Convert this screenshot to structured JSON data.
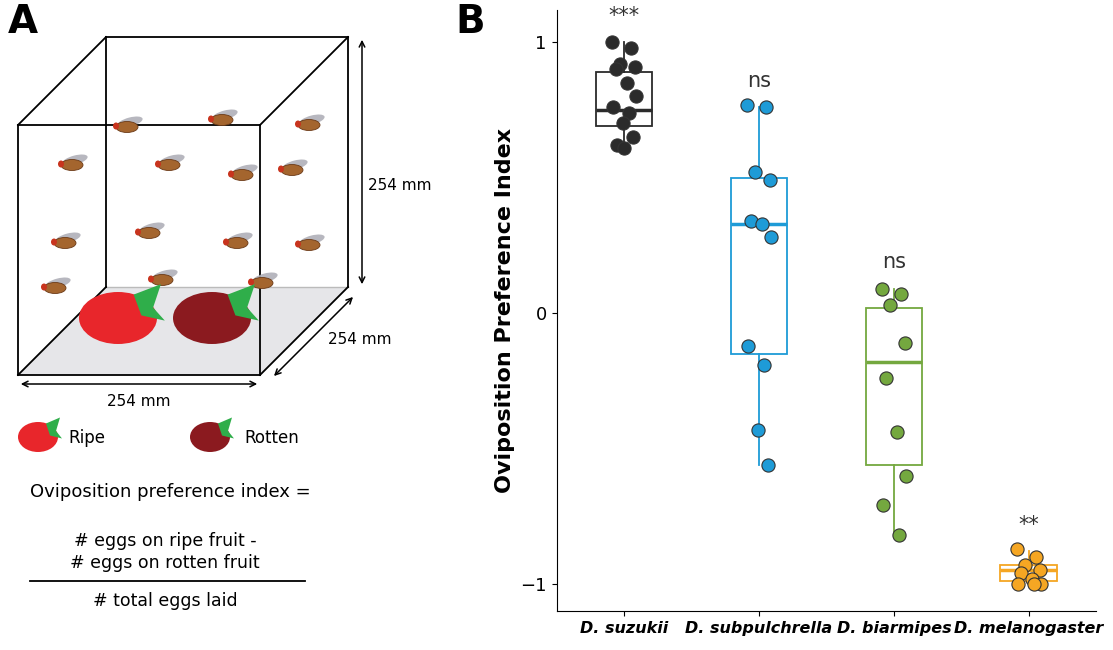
{
  "diagram": {
    "label": "A",
    "dimensions": [
      "254 mm",
      "254 mm",
      "254 mm"
    ],
    "legend": [
      {
        "label": "Ripe",
        "color": "#e8262b"
      },
      {
        "label": "Rotten",
        "color": "#8b1a1f"
      }
    ],
    "formula": {
      "lhs": "Oviposition preference index =",
      "numerator": [
        "# eggs on ripe fruit -",
        "# eggs on rotten fruit"
      ],
      "denominator": "# total eggs laid"
    }
  },
  "chart_data": {
    "type": "box",
    "label": "B",
    "y_label": "Oviposition Preference Index",
    "categories": [
      "D. suzukii",
      "D. subpulchrella",
      "D. biarmipes",
      "D. melanogaster"
    ],
    "colors": [
      "#2b2b2b",
      "#1e9bd7",
      "#74a83f",
      "#f5a623"
    ],
    "significance": [
      "***",
      "ns",
      "ns",
      "**"
    ],
    "boxes": [
      {
        "q1": 0.69,
        "median": 0.75,
        "q3": 0.89,
        "whisker_low": 0.6,
        "whisker_high": 1.0,
        "points": [
          1.0,
          0.98,
          0.92,
          0.91,
          0.9,
          0.85,
          0.8,
          0.76,
          0.74,
          0.7,
          0.65,
          0.62,
          0.61
        ]
      },
      {
        "q1": -0.15,
        "median": 0.33,
        "q3": 0.5,
        "whisker_low": -0.56,
        "whisker_high": 0.76,
        "points": [
          0.77,
          0.76,
          0.52,
          0.49,
          0.34,
          0.33,
          0.28,
          -0.12,
          -0.19,
          -0.43,
          -0.56
        ]
      },
      {
        "q1": -0.56,
        "median": -0.18,
        "q3": 0.02,
        "whisker_low": -0.82,
        "whisker_high": 0.09,
        "points": [
          0.09,
          0.07,
          0.03,
          -0.11,
          -0.24,
          -0.44,
          -0.6,
          -0.71,
          -0.82
        ]
      },
      {
        "q1": -0.99,
        "median": -0.95,
        "q3": -0.93,
        "whisker_low": -1.0,
        "whisker_high": -0.88,
        "points": [
          -0.87,
          -0.9,
          -0.93,
          -0.95,
          -0.96,
          -0.98,
          -1.0,
          -1.0,
          -1.0
        ]
      }
    ],
    "ylim": [
      -1.1,
      1.12
    ],
    "yticks": [
      {
        "value": -1,
        "label": "−1"
      },
      0,
      1
    ]
  }
}
